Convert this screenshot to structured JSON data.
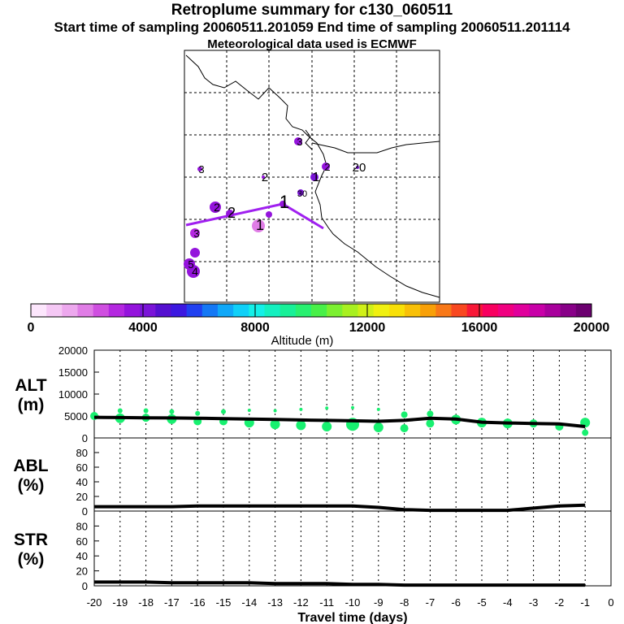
{
  "header": {
    "title": "Retroplume summary for c130_060511",
    "sampling_line": "Start time of sampling 20060511.201059     End time of sampling 20060511.201114",
    "met_line": "Meteorological data used is ECMWF"
  },
  "map": {
    "trajectory_color": "#a020f0",
    "clusters": [
      {
        "label": "1",
        "alt": 3500
      },
      {
        "label": "1",
        "alt": 2000
      },
      {
        "label": "1",
        "alt": 4200
      },
      {
        "label": "2",
        "alt": 3600
      },
      {
        "label": "2",
        "alt": 3600
      },
      {
        "label": "2",
        "alt": 3400
      },
      {
        "label": "2",
        "alt": 3800
      },
      {
        "label": "3",
        "alt": 3600
      },
      {
        "label": "3",
        "alt": 3500
      },
      {
        "label": "3",
        "alt": 3200
      },
      {
        "label": "4",
        "alt": 3500
      },
      {
        "label": "5",
        "alt": 3600
      },
      {
        "label": "20",
        "alt": 4300
      },
      {
        "label": "30",
        "alt": 4400
      }
    ]
  },
  "colorbar": {
    "tick_labels": [
      "0",
      "4000",
      "8000",
      "12000",
      "16000",
      "20000"
    ],
    "label": "Altitude (m)",
    "colors": [
      "#fce6fc",
      "#f5c8f5",
      "#eda8ee",
      "#e07de6",
      "#cf4fe0",
      "#b428e0",
      "#9414dc",
      "#7a14d8",
      "#5510d0",
      "#3c18e0",
      "#2040f0",
      "#1478f5",
      "#10a8f8",
      "#10d0f8",
      "#14f0e8",
      "#14f0c0",
      "#18f098",
      "#28f070",
      "#48f048",
      "#7cf030",
      "#a8f020",
      "#d0f018",
      "#f0f010",
      "#f8e008",
      "#f8c008",
      "#f8a008",
      "#f87818",
      "#f84820",
      "#f81838",
      "#f80060",
      "#f00080",
      "#e0009c",
      "#c800a8",
      "#a8009c",
      "#880088",
      "#6c0070"
    ]
  },
  "chart_data": [
    {
      "type": "line",
      "ylabel": "ALT\n(m)",
      "ylim": [
        0,
        20000
      ],
      "yticks": [
        "0",
        "5000",
        "10000",
        "15000",
        "20000"
      ],
      "xlim": [
        -20,
        0
      ],
      "series": [
        {
          "x": [
            -20,
            -19,
            -18,
            -17,
            -16,
            -15,
            -14,
            -13,
            -12,
            -11,
            -10,
            -9,
            -8,
            -7,
            -6,
            -5,
            -4,
            -3,
            -2,
            -1
          ],
          "values": [
            4700,
            4650,
            4600,
            4550,
            4500,
            4400,
            4300,
            4200,
            4100,
            4000,
            3900,
            3800,
            4000,
            4500,
            4300,
            3600,
            3400,
            3300,
            3200,
            2600
          ]
        }
      ],
      "dots": [
        {
          "x": -20,
          "y": 5000,
          "s": 5
        },
        {
          "x": -19,
          "y": 4500,
          "s": 6
        },
        {
          "x": -19,
          "y": 6200,
          "s": 3
        },
        {
          "x": -18,
          "y": 4600,
          "s": 5
        },
        {
          "x": -18,
          "y": 6200,
          "s": 3
        },
        {
          "x": -17,
          "y": 4300,
          "s": 6
        },
        {
          "x": -17,
          "y": 6000,
          "s": 3
        },
        {
          "x": -16,
          "y": 3800,
          "s": 5
        },
        {
          "x": -16,
          "y": 5600,
          "s": 3
        },
        {
          "x": -15,
          "y": 3800,
          "s": 5
        },
        {
          "x": -15,
          "y": 6000,
          "s": 3
        },
        {
          "x": -14,
          "y": 3500,
          "s": 6
        },
        {
          "x": -14,
          "y": 6300,
          "s": 2
        },
        {
          "x": -13,
          "y": 3100,
          "s": 6
        },
        {
          "x": -13,
          "y": 6200,
          "s": 2
        },
        {
          "x": -12,
          "y": 2900,
          "s": 6
        },
        {
          "x": -12,
          "y": 6500,
          "s": 2
        },
        {
          "x": -11,
          "y": 2600,
          "s": 6
        },
        {
          "x": -11,
          "y": 6800,
          "s": 2
        },
        {
          "x": -10,
          "y": 3100,
          "s": 8
        },
        {
          "x": -10,
          "y": 6900,
          "s": 2
        },
        {
          "x": -9,
          "y": 2400,
          "s": 6
        },
        {
          "x": -9,
          "y": 6500,
          "s": 2
        },
        {
          "x": -8,
          "y": 2200,
          "s": 5
        },
        {
          "x": -8,
          "y": 5300,
          "s": 4
        },
        {
          "x": -7,
          "y": 3300,
          "s": 5
        },
        {
          "x": -7,
          "y": 5500,
          "s": 4
        },
        {
          "x": -6,
          "y": 4200,
          "s": 6
        },
        {
          "x": -5,
          "y": 3500,
          "s": 6
        },
        {
          "x": -4,
          "y": 3300,
          "s": 6
        },
        {
          "x": -3,
          "y": 3300,
          "s": 5
        },
        {
          "x": -2,
          "y": 2600,
          "s": 5
        },
        {
          "x": -1,
          "y": 3500,
          "s": 6
        },
        {
          "x": -1,
          "y": 1200,
          "s": 4
        }
      ]
    },
    {
      "type": "line",
      "ylabel": "ABL\n(%)",
      "ylim": [
        0,
        100
      ],
      "yticks": [
        "0",
        "20",
        "40",
        "60",
        "80"
      ],
      "xlim": [
        -20,
        0
      ],
      "series": [
        {
          "x": [
            -20,
            -19,
            -18,
            -17,
            -16,
            -15,
            -14,
            -13,
            -12,
            -11,
            -10,
            -9,
            -8,
            -7,
            -6,
            -5,
            -4,
            -3,
            -2,
            -1
          ],
          "values": [
            6,
            6,
            6,
            6,
            7,
            7,
            7,
            7,
            7,
            7,
            7,
            5,
            2,
            1,
            1,
            1,
            1,
            4,
            7,
            8
          ]
        }
      ]
    },
    {
      "type": "line",
      "ylabel": "STR\n(%)",
      "ylim": [
        0,
        100
      ],
      "yticks": [
        "0",
        "20",
        "40",
        "60",
        "80"
      ],
      "xlim": [
        -20,
        0
      ],
      "xticks": [
        "-20",
        "-19",
        "-18",
        "-17",
        "-16",
        "-15",
        "-14",
        "-13",
        "-12",
        "-11",
        "-10",
        "-9",
        "-8",
        "-7",
        "-6",
        "-5",
        "-4",
        "-3",
        "-2",
        "-1",
        "0"
      ],
      "xlabel": "Travel time (days)",
      "series": [
        {
          "x": [
            -20,
            -19,
            -18,
            -17,
            -16,
            -15,
            -14,
            -13,
            -12,
            -11,
            -10,
            -9,
            -8,
            -7,
            -6,
            -5,
            -4,
            -3,
            -2,
            -1
          ],
          "values": [
            5,
            5,
            5,
            4,
            4,
            4,
            4,
            3,
            3,
            3,
            2,
            2,
            1,
            1,
            1,
            1,
            1,
            1,
            1,
            1
          ]
        }
      ],
      "series_color": "#000000",
      "dot_color": "#18f070"
    }
  ]
}
